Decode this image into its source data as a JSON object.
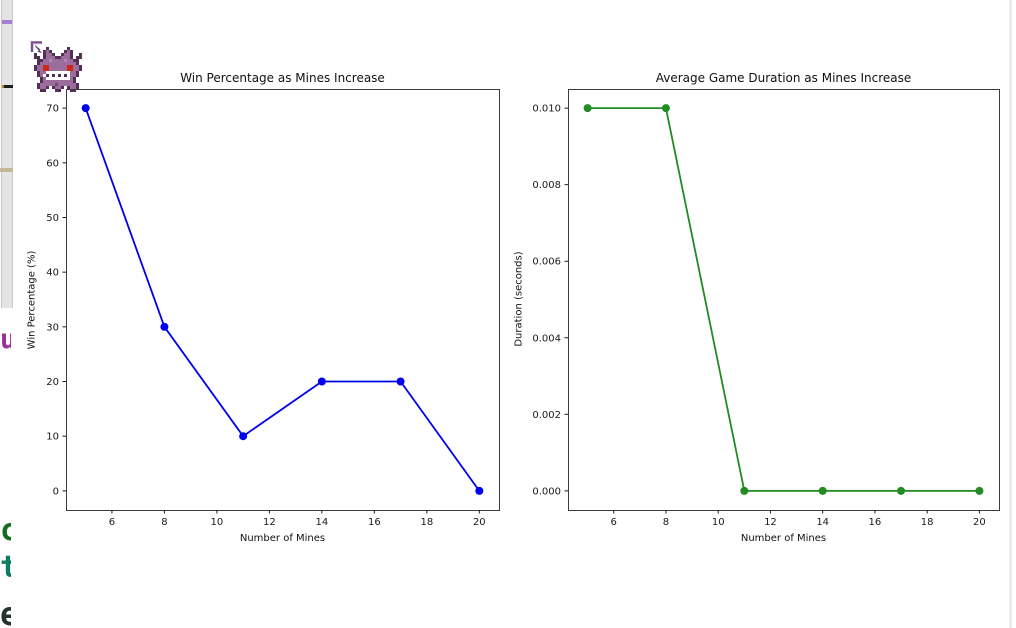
{
  "figure": {
    "background_color": "#ffffff",
    "cursor_icon": "gengar-pixel-sprite",
    "corner_cursor_color": "#7a4b8a"
  },
  "background_window": {
    "scrollbar_accent_colors": {
      "purple": "#a77fd2",
      "black": "#1c1c1c",
      "tan": "#c4b896"
    },
    "partial_glyphs": [
      {
        "text": "u",
        "color": "#9b2d9b"
      },
      {
        "text": "c",
        "color": "#156a1c"
      },
      {
        "text": "t",
        "color": "#0e7c62"
      },
      {
        "text": "e",
        "color": "#26332d"
      }
    ]
  },
  "chart_data": [
    {
      "type": "line",
      "title": "Win Percentage as Mines Increase",
      "xlabel": "Number of Mines",
      "ylabel": "Win Percentage (%)",
      "x": [
        5,
        8,
        11,
        14,
        17,
        20
      ],
      "y": [
        70,
        30,
        10,
        20,
        20,
        0
      ],
      "color": "#0000ee",
      "marker": "circle",
      "xlim": [
        4.25,
        20.75
      ],
      "ylim": [
        -3.5,
        73.5
      ],
      "xticks": [
        6,
        8,
        10,
        12,
        14,
        16,
        18,
        20
      ],
      "xtick_labels": [
        "6",
        "8",
        "10",
        "12",
        "14",
        "16",
        "18",
        "20"
      ],
      "yticks": [
        0,
        10,
        20,
        30,
        40,
        50,
        60,
        70
      ],
      "ytick_labels": [
        "0",
        "10",
        "20",
        "30",
        "40",
        "50",
        "60",
        "70"
      ],
      "grid": false,
      "legend": null
    },
    {
      "type": "line",
      "title": "Average Game Duration as Mines Increase",
      "xlabel": "Number of Mines",
      "ylabel": "Duration (seconds)",
      "x": [
        5,
        8,
        11,
        14,
        17,
        20
      ],
      "y": [
        0.01,
        0.01,
        0.0,
        0.0,
        0.0,
        0.0
      ],
      "color": "#228B22",
      "marker": "circle",
      "xlim": [
        4.25,
        20.75
      ],
      "ylim": [
        -0.0005,
        0.0105
      ],
      "xticks": [
        6,
        8,
        10,
        12,
        14,
        16,
        18,
        20
      ],
      "xtick_labels": [
        "6",
        "8",
        "10",
        "12",
        "14",
        "16",
        "18",
        "20"
      ],
      "yticks": [
        0.0,
        0.002,
        0.004,
        0.006,
        0.008,
        0.01
      ],
      "ytick_labels": [
        "0.000",
        "0.002",
        "0.004",
        "0.006",
        "0.008",
        "0.010"
      ],
      "grid": false,
      "legend": null
    }
  ]
}
